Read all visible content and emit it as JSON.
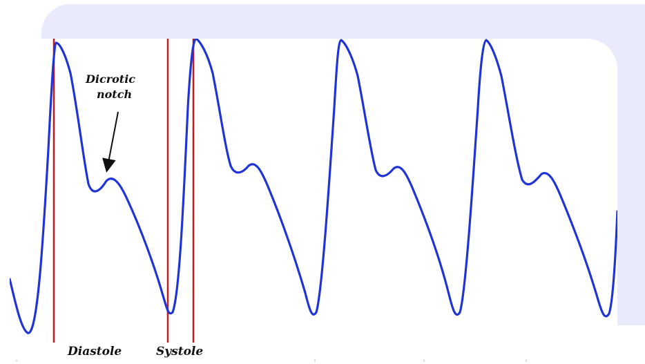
{
  "diagram": {
    "annotation": {
      "line1": "Dicrotic",
      "line2": "notch"
    },
    "labels": {
      "diastole": "Diastole",
      "systole": "Systole"
    },
    "colors": {
      "waveform": "#1f33d6",
      "marker": "#c0191f",
      "background_plate": "#e9ebfc",
      "text": "#111111"
    }
  }
}
